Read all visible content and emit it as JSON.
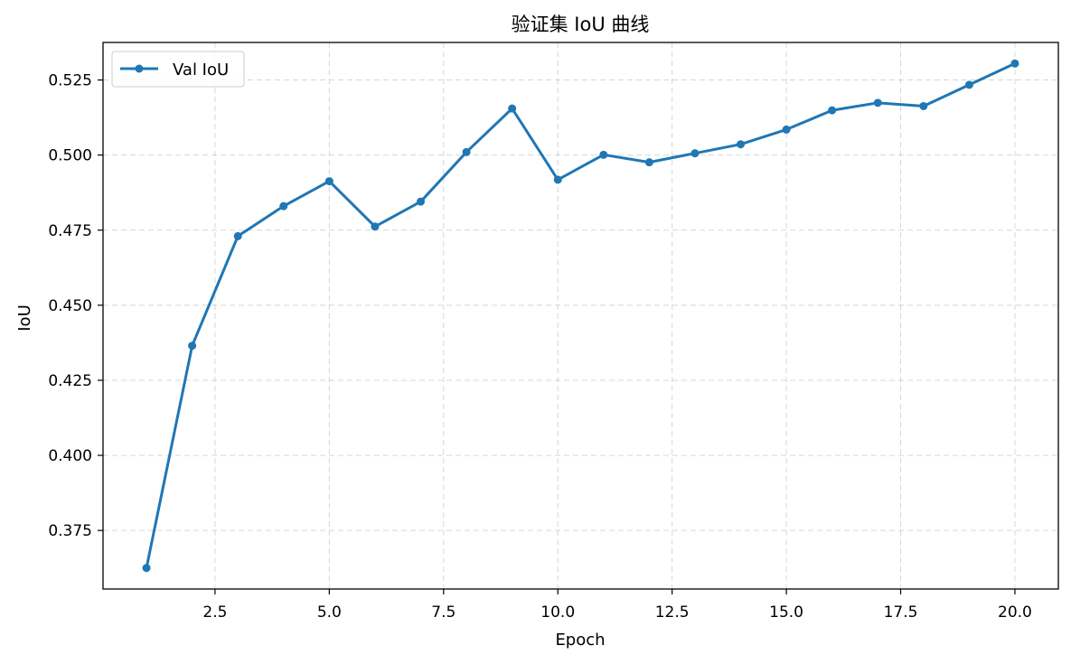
{
  "chart_data": {
    "type": "line",
    "title": "验证集 IoU 曲线",
    "xlabel": "Epoch",
    "ylabel": "IoU",
    "xlim": [
      0.05,
      20.95
    ],
    "ylim": [
      0.3555,
      0.5375
    ],
    "grid": true,
    "legend_position": "upper-left",
    "x_ticks": [
      2.5,
      5.0,
      7.5,
      10.0,
      12.5,
      15.0,
      17.5,
      20.0
    ],
    "x_tick_labels": [
      "2.5",
      "5.0",
      "7.5",
      "10.0",
      "12.5",
      "15.0",
      "17.5",
      "20.0"
    ],
    "y_ticks": [
      0.375,
      0.4,
      0.425,
      0.45,
      0.475,
      0.5,
      0.525
    ],
    "y_tick_labels": [
      "0.375",
      "0.400",
      "0.425",
      "0.450",
      "0.475",
      "0.500",
      "0.525"
    ],
    "series": [
      {
        "name": "Val IoU",
        "color": "#1f77b4",
        "marker": "circle",
        "x": [
          1,
          2,
          3,
          4,
          5,
          6,
          7,
          8,
          9,
          10,
          11,
          12,
          13,
          14,
          15,
          16,
          17,
          18,
          19,
          20
        ],
        "y": [
          0.3625,
          0.4365,
          0.473,
          0.483,
          0.4913,
          0.4762,
          0.4845,
          0.501,
          0.5155,
          0.4918,
          0.5001,
          0.4976,
          0.5006,
          0.5036,
          0.5085,
          0.5149,
          0.5174,
          0.5163,
          0.5234,
          0.5305
        ]
      }
    ]
  }
}
